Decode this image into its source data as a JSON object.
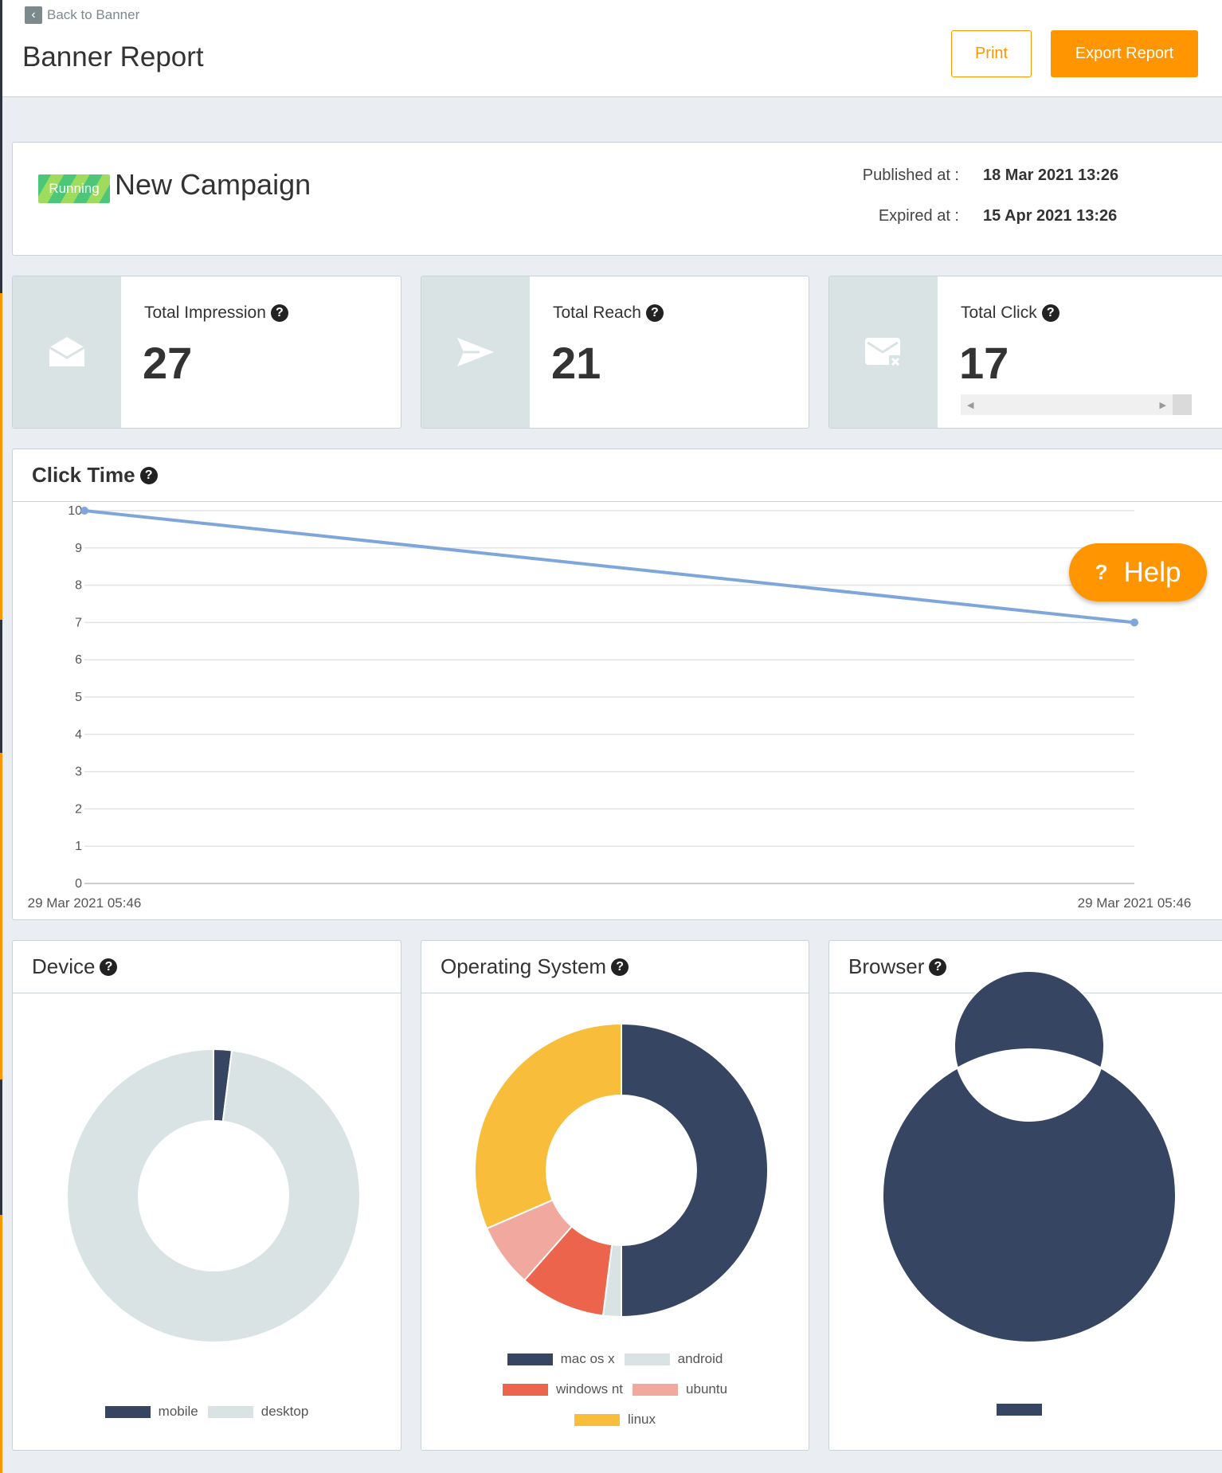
{
  "header": {
    "back_label": "Back to Banner",
    "title": "Banner Report",
    "print_label": "Print",
    "export_label": "Export Report"
  },
  "campaign": {
    "status": "Running",
    "name": "New Campaign",
    "published_label": "Published at :",
    "published_value": "18 Mar 2021 13:26",
    "expired_label": "Expired at :",
    "expired_value": "15 Apr 2021 13:26"
  },
  "stats": [
    {
      "label": "Total Impression",
      "value": "27",
      "icon": "envelope-open-icon"
    },
    {
      "label": "Total Reach",
      "value": "21",
      "icon": "paper-plane-icon"
    },
    {
      "label": "Total Click",
      "value": "17",
      "icon": "envelope-x-icon"
    }
  ],
  "help_label": "Help",
  "colors": {
    "accent": "#ff9500",
    "navy": "#364561",
    "light": "#dae3e3",
    "red": "#ec644b",
    "pink": "#f1a99f",
    "yellow": "#f8be3b",
    "line": "#7ea6db"
  },
  "chart_data": [
    {
      "type": "line",
      "title": "Click Time",
      "x": [
        "29 Mar 2021 05:46",
        "29 Mar 2021 05:46"
      ],
      "series": [
        {
          "values": [
            10,
            7
          ]
        }
      ],
      "ylim": [
        0,
        10
      ],
      "yticks": [
        "0",
        "1",
        "2",
        "3",
        "4",
        "5",
        "6",
        "7",
        "8",
        "9",
        "10"
      ],
      "grid": true
    },
    {
      "type": "pie",
      "title": "Device",
      "categories": [
        "mobile",
        "desktop"
      ],
      "values": [
        2,
        98
      ],
      "colors": [
        "#364561",
        "#dae3e3"
      ],
      "legend": "bottom"
    },
    {
      "type": "pie",
      "title": "Operating System",
      "categories": [
        "mac os x",
        "android",
        "windows nt",
        "ubuntu",
        "linux"
      ],
      "values": [
        50,
        2,
        9.5,
        7,
        31.5
      ],
      "colors": [
        "#364561",
        "#dae3e3",
        "#ec644b",
        "#f1a99f",
        "#f8be3b"
      ],
      "legend": "bottom"
    },
    {
      "type": "pie",
      "title": "Browser",
      "categories": [
        ""
      ],
      "values": [
        100
      ],
      "colors": [
        "#364561"
      ],
      "legend": "bottom"
    }
  ]
}
